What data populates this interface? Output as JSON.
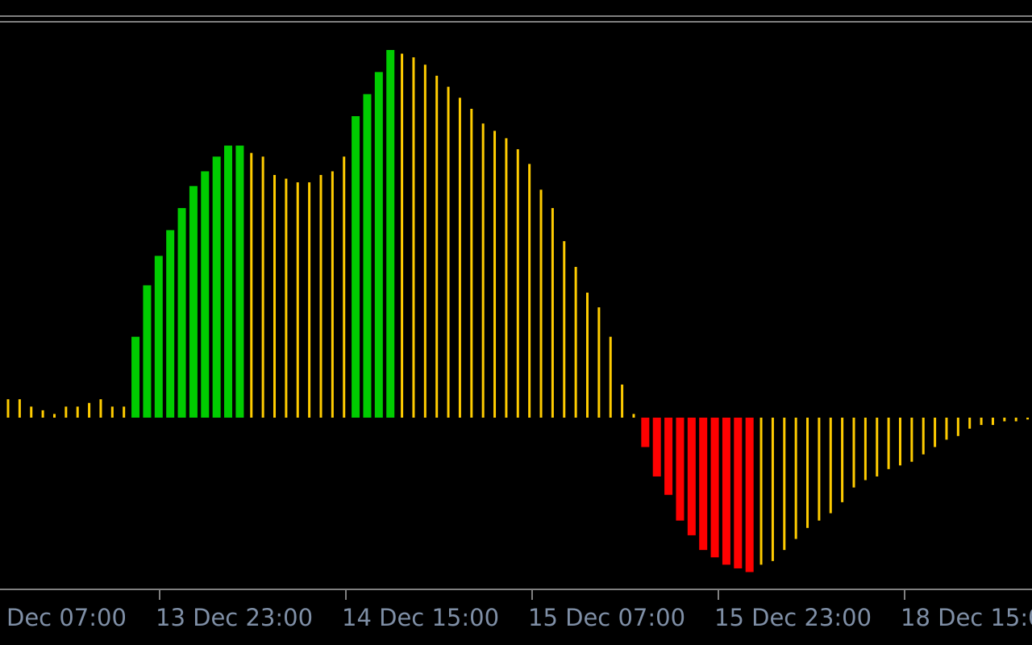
{
  "chart_data": {
    "type": "bar",
    "title": "",
    "xlabel": "",
    "ylabel": "",
    "ylim": [
      -0.42,
      1.0
    ],
    "grid": false,
    "legend": "none",
    "x_tick_labels": [
      "Dec 07:00",
      "13 Dec 23:00",
      "14 Dec 15:00",
      "15 Dec 07:00",
      "15 Dec 23:00",
      "18 Dec 15:00"
    ],
    "colors": {
      "background": "#000000",
      "rising": "#00cc00",
      "falling": "#ff0000",
      "neutral": "#ffcc00",
      "axis": "#808080",
      "text": "#7f8fa6"
    },
    "series": [
      {
        "values": [
          0.05,
          0.05,
          0.03,
          0.02,
          0.01,
          0.03,
          0.03,
          0.04,
          0.05,
          0.03,
          0.03,
          0.22,
          0.36,
          0.44,
          0.51,
          0.57,
          0.63,
          0.67,
          0.71,
          0.74,
          0.74,
          0.72,
          0.71,
          0.66,
          0.65,
          0.64,
          0.64,
          0.66,
          0.67,
          0.71,
          0.82,
          0.88,
          0.94,
          1.0,
          0.99,
          0.98,
          0.96,
          0.93,
          0.9,
          0.87,
          0.84,
          0.8,
          0.78,
          0.76,
          0.73,
          0.69,
          0.62,
          0.57,
          0.48,
          0.41,
          0.34,
          0.3,
          0.22,
          0.09,
          0.01,
          -0.08,
          -0.16,
          -0.21,
          -0.28,
          -0.32,
          -0.36,
          -0.38,
          -0.4,
          -0.41,
          -0.42,
          -0.4,
          -0.39,
          -0.36,
          -0.33,
          -0.3,
          -0.28,
          -0.26,
          -0.23,
          -0.19,
          -0.17,
          -0.16,
          -0.14,
          -0.13,
          -0.12,
          -0.1,
          -0.08,
          -0.06,
          -0.05,
          -0.03,
          -0.02,
          -0.02,
          -0.01,
          -0.01,
          -0.005,
          -0.005
        ],
        "colors": [
          "neutral",
          "neutral",
          "neutral",
          "neutral",
          "neutral",
          "neutral",
          "neutral",
          "neutral",
          "neutral",
          "neutral",
          "neutral",
          "rising",
          "rising",
          "rising",
          "rising",
          "rising",
          "rising",
          "rising",
          "rising",
          "rising",
          "rising",
          "neutral",
          "neutral",
          "neutral",
          "neutral",
          "neutral",
          "neutral",
          "neutral",
          "neutral",
          "neutral",
          "rising",
          "rising",
          "rising",
          "rising",
          "neutral",
          "neutral",
          "neutral",
          "neutral",
          "neutral",
          "neutral",
          "neutral",
          "neutral",
          "neutral",
          "neutral",
          "neutral",
          "neutral",
          "neutral",
          "neutral",
          "neutral",
          "neutral",
          "neutral",
          "neutral",
          "neutral",
          "neutral",
          "neutral",
          "falling",
          "falling",
          "falling",
          "falling",
          "falling",
          "falling",
          "falling",
          "falling",
          "falling",
          "falling",
          "neutral",
          "neutral",
          "neutral",
          "neutral",
          "neutral",
          "neutral",
          "neutral",
          "neutral",
          "neutral",
          "neutral",
          "neutral",
          "neutral",
          "neutral",
          "neutral",
          "neutral",
          "neutral",
          "neutral",
          "neutral",
          "neutral",
          "neutral",
          "neutral",
          "neutral",
          "neutral",
          "neutral",
          "rising"
        ]
      }
    ]
  }
}
